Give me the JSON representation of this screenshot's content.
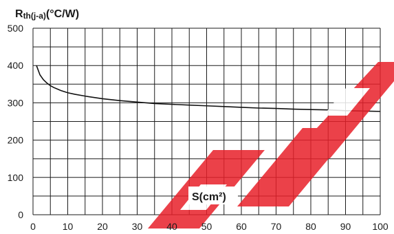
{
  "chart_data": {
    "type": "line",
    "ylabel_main": "R",
    "ylabel_sub": "th(j-a)",
    "ylabel_unit": "(°C/W)",
    "xlabel": "S(cm²)",
    "xlim": [
      0,
      100
    ],
    "ylim": [
      0,
      500
    ],
    "x_ticks": [
      0,
      10,
      20,
      30,
      40,
      50,
      60,
      70,
      80,
      90,
      100
    ],
    "y_ticks": [
      0,
      100,
      200,
      300,
      400,
      500
    ],
    "x_tick_labels": [
      "0",
      "10",
      "20",
      "30",
      "40",
      "50",
      "60",
      "70",
      "80",
      "90",
      "100"
    ],
    "y_tick_labels": [
      "0",
      "100",
      "200",
      "300",
      "400",
      "500"
    ],
    "grid": true,
    "grid_x_step": 5,
    "grid_y_step": 50,
    "series": [
      {
        "x": [
          1,
          2,
          3,
          4,
          5,
          6,
          8,
          10,
          12,
          15,
          20,
          25,
          30,
          35,
          40,
          45,
          50,
          55,
          60,
          65,
          70,
          75,
          80,
          85,
          90,
          95,
          100
        ],
        "y": [
          400,
          375,
          362,
          353,
          346,
          341,
          333,
          327,
          323,
          318,
          311,
          306,
          302,
          298,
          296,
          294,
          292,
          290,
          288,
          286,
          285,
          283,
          282,
          281,
          279,
          278,
          277
        ]
      }
    ],
    "colors": {
      "line": "#111111",
      "grid": "#1a1a1a",
      "watermark": "#e8202a"
    }
  }
}
